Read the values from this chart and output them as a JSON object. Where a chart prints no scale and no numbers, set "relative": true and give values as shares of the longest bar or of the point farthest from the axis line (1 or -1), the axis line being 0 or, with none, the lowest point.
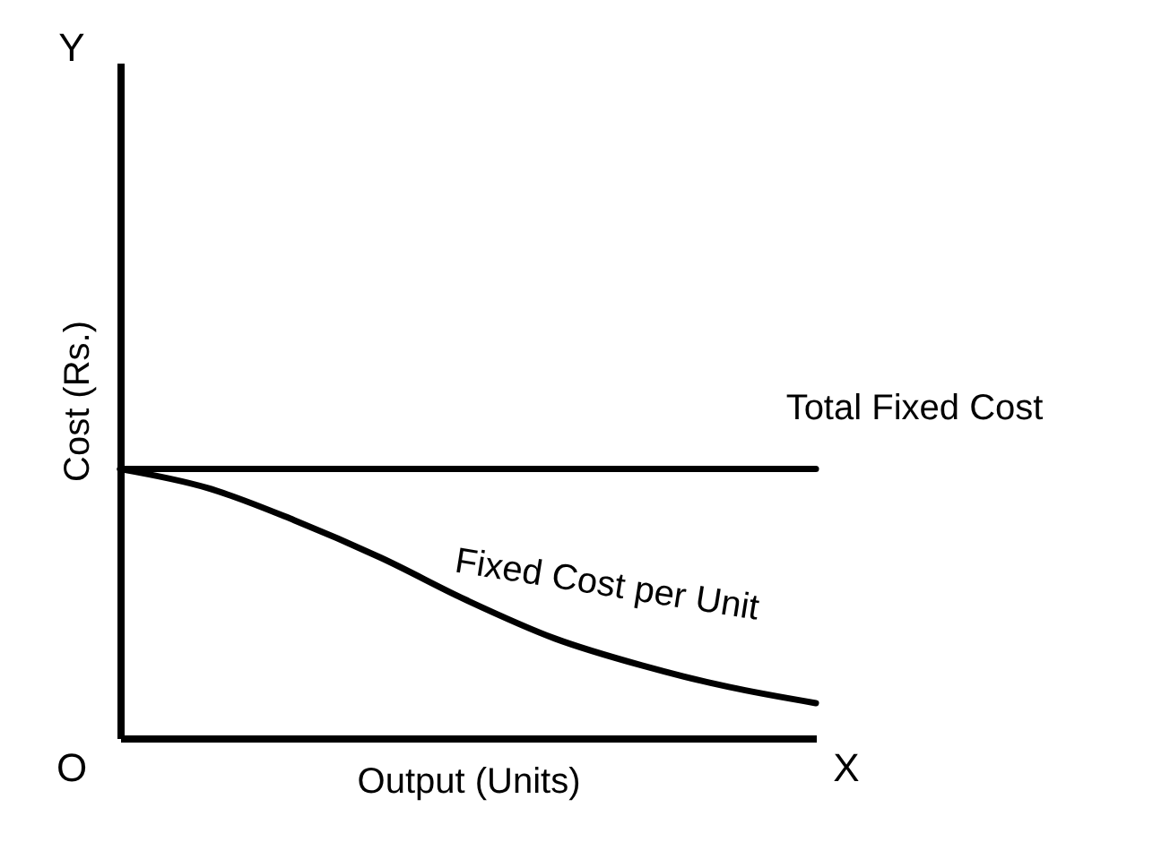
{
  "chart_data": {
    "type": "line",
    "relative": true,
    "xlabel": "Output (Units)",
    "ylabel": "Cost (Rs.)",
    "annotations": [
      "Y",
      "O",
      "X"
    ],
    "categories": [
      null,
      null,
      null,
      null,
      null,
      null,
      null,
      null,
      null
    ],
    "grid": false,
    "marker": "none",
    "line_style": "solid",
    "series": [
      {
        "name": "Total Fixed Cost",
        "color": "#000000",
        "values": [
          1,
          1,
          1,
          1,
          1,
          1,
          1,
          1,
          1
        ]
      },
      {
        "name": "Fixed Cost per Unit",
        "color": "#000000",
        "values": [
          1,
          0.93,
          0.81,
          0.67,
          0.51,
          0.37,
          0.27,
          0.19,
          0.13
        ]
      }
    ]
  }
}
